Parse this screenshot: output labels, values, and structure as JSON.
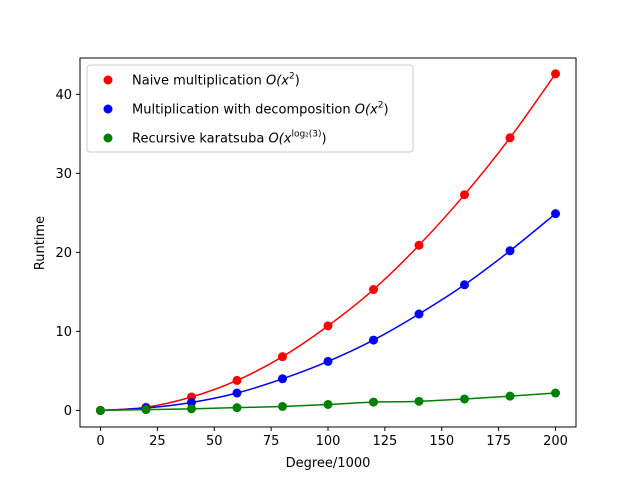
{
  "chart_data": {
    "type": "line",
    "title": "",
    "xlabel": "Degree/1000",
    "ylabel": "Runtime",
    "xlim": [
      -9,
      209
    ],
    "ylim": [
      -2.1,
      44.6
    ],
    "xticks": [
      0,
      25,
      50,
      75,
      100,
      125,
      150,
      175,
      200
    ],
    "yticks": [
      0,
      10,
      20,
      30,
      40
    ],
    "grid": false,
    "legend_position": "top-left",
    "x": [
      0,
      20,
      40,
      60,
      80,
      100,
      120,
      140,
      160,
      180,
      200
    ],
    "series": [
      {
        "name": "Naive multiplication",
        "complexity_base": "O(x",
        "complexity_sup": "2",
        "complexity_tail": ")",
        "color": "#ff0000",
        "values": [
          0.0,
          0.4,
          1.7,
          3.8,
          6.8,
          10.7,
          15.3,
          20.9,
          27.3,
          34.5,
          42.6
        ]
      },
      {
        "name": "Multiplication with decomposition",
        "complexity_base": "O(x",
        "complexity_sup": "2",
        "complexity_tail": ")",
        "color": "#0000ff",
        "values": [
          0.0,
          0.3,
          1.0,
          2.2,
          4.0,
          6.2,
          8.9,
          12.2,
          15.9,
          20.2,
          24.9
        ]
      },
      {
        "name": "Recursive karatsuba",
        "complexity_base": "O(x",
        "complexity_sup": "log₂(3)",
        "complexity_tail": ")",
        "color": "#008000",
        "values": [
          0.0,
          0.1,
          0.2,
          0.35,
          0.5,
          0.75,
          1.05,
          1.15,
          1.45,
          1.8,
          2.2
        ]
      }
    ]
  }
}
